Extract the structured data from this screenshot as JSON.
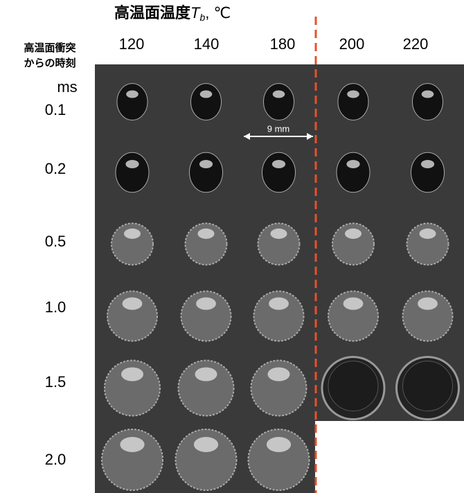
{
  "header": {
    "title": "高温面温度",
    "symbol": "T",
    "subscript": "b",
    "unit": ", ℃"
  },
  "row_header": {
    "lines": [
      "高温面衝突",
      "からの時刻"
    ],
    "unit": "ms"
  },
  "columns": [
    "120",
    "140",
    "180",
    "200",
    "220"
  ],
  "rows": [
    "0.1",
    "0.2",
    "0.5",
    "1.0",
    "1.5",
    "2.0"
  ],
  "scale_label": "9 mm"
}
